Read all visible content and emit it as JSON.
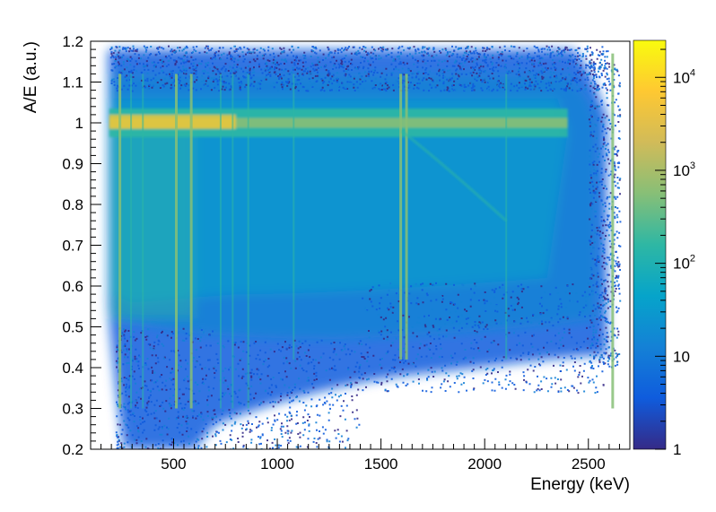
{
  "chart_data": {
    "type": "heatmap",
    "xlabel": "Energy (keV)",
    "ylabel": "A/E (a.u.)",
    "xlim": [
      100,
      2700
    ],
    "ylim": [
      0.2,
      1.2
    ],
    "x_ticks": [
      {
        "value": 500,
        "label": "500"
      },
      {
        "value": 1000,
        "label": "1000"
      },
      {
        "value": 1500,
        "label": "1500"
      },
      {
        "value": 2000,
        "label": "2000"
      },
      {
        "value": 2500,
        "label": "2500"
      }
    ],
    "y_ticks": [
      {
        "value": 0.2,
        "label": "0.2"
      },
      {
        "value": 0.3,
        "label": "0.3"
      },
      {
        "value": 0.4,
        "label": "0.4"
      },
      {
        "value": 0.5,
        "label": "0.5"
      },
      {
        "value": 0.6,
        "label": "0.6"
      },
      {
        "value": 0.7,
        "label": "0.7"
      },
      {
        "value": 0.8,
        "label": "0.8"
      },
      {
        "value": 0.9,
        "label": "0.9"
      },
      {
        "value": 1.0,
        "label": "1"
      },
      {
        "value": 1.1,
        "label": "1.1"
      },
      {
        "value": 1.2,
        "label": "1.2"
      }
    ],
    "colorbar": {
      "scale": "log",
      "range": [
        1,
        25000
      ],
      "ticks": [
        {
          "value": 1,
          "base": "1",
          "exp": ""
        },
        {
          "value": 10,
          "base": "10",
          "exp": ""
        },
        {
          "value": 100,
          "base": "10",
          "exp": "2"
        },
        {
          "value": 1000,
          "base": "10",
          "exp": "3"
        },
        {
          "value": 10000,
          "base": "10",
          "exp": "4"
        }
      ],
      "colors": [
        "#352a87",
        "#0f5cdd",
        "#1481d6",
        "#06a4ca",
        "#2eb7a4",
        "#87bf77",
        "#d1bb59",
        "#fec832",
        "#f9fb0e"
      ]
    },
    "main_band": {
      "a_over_e": 1.0,
      "energy_range": [
        190,
        2400
      ]
    },
    "gamma_lines_keV": [
      239,
      295,
      352,
      511,
      583,
      727,
      785,
      860,
      1079,
      1593,
      1621,
      2104,
      2615
    ],
    "diagonal_feature": {
      "from": [
        1600,
        0.98
      ],
      "to": [
        2104,
        0.76
      ]
    }
  }
}
